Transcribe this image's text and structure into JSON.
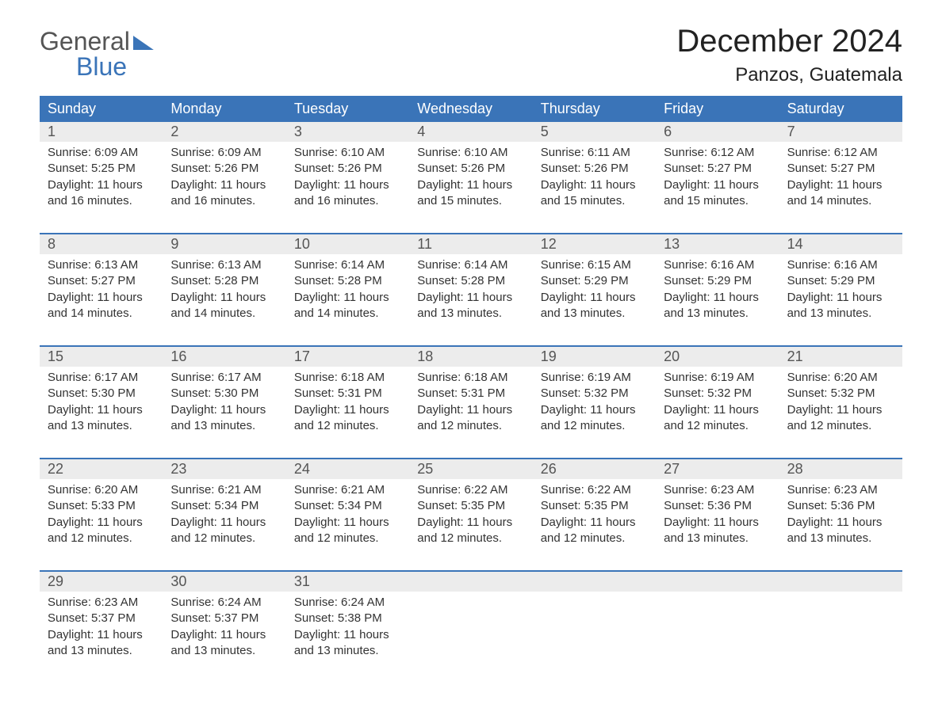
{
  "logo": {
    "word1": "General",
    "word2": "Blue"
  },
  "title": "December 2024",
  "location": "Panzos, Guatemala",
  "colors": {
    "header_bg": "#3a74b8",
    "header_text": "#ffffff",
    "daynum_bg": "#ececec",
    "daynum_text": "#555555",
    "body_text": "#333333",
    "week_border": "#3a74b8",
    "logo_gray": "#555555",
    "logo_blue": "#3a74b8",
    "page_bg": "#ffffff"
  },
  "fonts": {
    "title_size_pt": 30,
    "location_size_pt": 18,
    "dow_size_pt": 14,
    "daynum_size_pt": 14,
    "body_size_pt": 11
  },
  "days_of_week": [
    "Sunday",
    "Monday",
    "Tuesday",
    "Wednesday",
    "Thursday",
    "Friday",
    "Saturday"
  ],
  "weeks": [
    [
      {
        "n": "1",
        "sunrise": "6:09 AM",
        "sunset": "5:25 PM",
        "daylight": "11 hours and 16 minutes."
      },
      {
        "n": "2",
        "sunrise": "6:09 AM",
        "sunset": "5:26 PM",
        "daylight": "11 hours and 16 minutes."
      },
      {
        "n": "3",
        "sunrise": "6:10 AM",
        "sunset": "5:26 PM",
        "daylight": "11 hours and 16 minutes."
      },
      {
        "n": "4",
        "sunrise": "6:10 AM",
        "sunset": "5:26 PM",
        "daylight": "11 hours and 15 minutes."
      },
      {
        "n": "5",
        "sunrise": "6:11 AM",
        "sunset": "5:26 PM",
        "daylight": "11 hours and 15 minutes."
      },
      {
        "n": "6",
        "sunrise": "6:12 AM",
        "sunset": "5:27 PM",
        "daylight": "11 hours and 15 minutes."
      },
      {
        "n": "7",
        "sunrise": "6:12 AM",
        "sunset": "5:27 PM",
        "daylight": "11 hours and 14 minutes."
      }
    ],
    [
      {
        "n": "8",
        "sunrise": "6:13 AM",
        "sunset": "5:27 PM",
        "daylight": "11 hours and 14 minutes."
      },
      {
        "n": "9",
        "sunrise": "6:13 AM",
        "sunset": "5:28 PM",
        "daylight": "11 hours and 14 minutes."
      },
      {
        "n": "10",
        "sunrise": "6:14 AM",
        "sunset": "5:28 PM",
        "daylight": "11 hours and 14 minutes."
      },
      {
        "n": "11",
        "sunrise": "6:14 AM",
        "sunset": "5:28 PM",
        "daylight": "11 hours and 13 minutes."
      },
      {
        "n": "12",
        "sunrise": "6:15 AM",
        "sunset": "5:29 PM",
        "daylight": "11 hours and 13 minutes."
      },
      {
        "n": "13",
        "sunrise": "6:16 AM",
        "sunset": "5:29 PM",
        "daylight": "11 hours and 13 minutes."
      },
      {
        "n": "14",
        "sunrise": "6:16 AM",
        "sunset": "5:29 PM",
        "daylight": "11 hours and 13 minutes."
      }
    ],
    [
      {
        "n": "15",
        "sunrise": "6:17 AM",
        "sunset": "5:30 PM",
        "daylight": "11 hours and 13 minutes."
      },
      {
        "n": "16",
        "sunrise": "6:17 AM",
        "sunset": "5:30 PM",
        "daylight": "11 hours and 13 minutes."
      },
      {
        "n": "17",
        "sunrise": "6:18 AM",
        "sunset": "5:31 PM",
        "daylight": "11 hours and 12 minutes."
      },
      {
        "n": "18",
        "sunrise": "6:18 AM",
        "sunset": "5:31 PM",
        "daylight": "11 hours and 12 minutes."
      },
      {
        "n": "19",
        "sunrise": "6:19 AM",
        "sunset": "5:32 PM",
        "daylight": "11 hours and 12 minutes."
      },
      {
        "n": "20",
        "sunrise": "6:19 AM",
        "sunset": "5:32 PM",
        "daylight": "11 hours and 12 minutes."
      },
      {
        "n": "21",
        "sunrise": "6:20 AM",
        "sunset": "5:32 PM",
        "daylight": "11 hours and 12 minutes."
      }
    ],
    [
      {
        "n": "22",
        "sunrise": "6:20 AM",
        "sunset": "5:33 PM",
        "daylight": "11 hours and 12 minutes."
      },
      {
        "n": "23",
        "sunrise": "6:21 AM",
        "sunset": "5:34 PM",
        "daylight": "11 hours and 12 minutes."
      },
      {
        "n": "24",
        "sunrise": "6:21 AM",
        "sunset": "5:34 PM",
        "daylight": "11 hours and 12 minutes."
      },
      {
        "n": "25",
        "sunrise": "6:22 AM",
        "sunset": "5:35 PM",
        "daylight": "11 hours and 12 minutes."
      },
      {
        "n": "26",
        "sunrise": "6:22 AM",
        "sunset": "5:35 PM",
        "daylight": "11 hours and 12 minutes."
      },
      {
        "n": "27",
        "sunrise": "6:23 AM",
        "sunset": "5:36 PM",
        "daylight": "11 hours and 13 minutes."
      },
      {
        "n": "28",
        "sunrise": "6:23 AM",
        "sunset": "5:36 PM",
        "daylight": "11 hours and 13 minutes."
      }
    ],
    [
      {
        "n": "29",
        "sunrise": "6:23 AM",
        "sunset": "5:37 PM",
        "daylight": "11 hours and 13 minutes."
      },
      {
        "n": "30",
        "sunrise": "6:24 AM",
        "sunset": "5:37 PM",
        "daylight": "11 hours and 13 minutes."
      },
      {
        "n": "31",
        "sunrise": "6:24 AM",
        "sunset": "5:38 PM",
        "daylight": "11 hours and 13 minutes."
      },
      {
        "n": "",
        "sunrise": "",
        "sunset": "",
        "daylight": ""
      },
      {
        "n": "",
        "sunrise": "",
        "sunset": "",
        "daylight": ""
      },
      {
        "n": "",
        "sunrise": "",
        "sunset": "",
        "daylight": ""
      },
      {
        "n": "",
        "sunrise": "",
        "sunset": "",
        "daylight": ""
      }
    ]
  ],
  "labels": {
    "sunrise": "Sunrise: ",
    "sunset": "Sunset: ",
    "daylight": "Daylight: "
  }
}
